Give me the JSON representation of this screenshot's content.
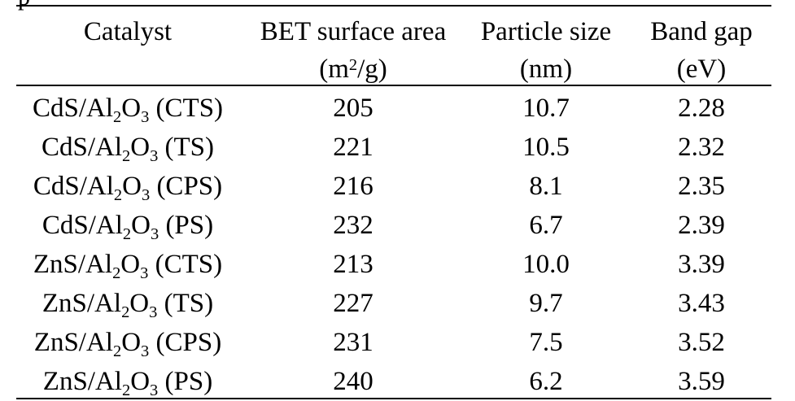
{
  "header": {
    "catalyst": "Catalyst",
    "bet_line1": "BET surface area",
    "bet_unit_pre": "(m",
    "bet_unit_sup": "2",
    "bet_unit_post": "/g)",
    "particle_line1": "Particle size",
    "particle_unit": "(nm)",
    "bandgap_line1": "Band gap",
    "bandgap_unit": "(eV)"
  },
  "rows": [
    {
      "metal": "CdS/Al",
      "o": "O",
      "method": " (CTS)",
      "bet": "205",
      "particle": "10.7",
      "bandgap": "2.28"
    },
    {
      "metal": "CdS/Al",
      "o": "O",
      "method": " (TS)",
      "bet": "221",
      "particle": "10.5",
      "bandgap": "2.32"
    },
    {
      "metal": "CdS/Al",
      "o": "O",
      "method": " (CPS)",
      "bet": "216",
      "particle": "8.1",
      "bandgap": "2.35"
    },
    {
      "metal": "CdS/Al",
      "o": "O",
      "method": " (PS)",
      "bet": "232",
      "particle": "6.7",
      "bandgap": "2.39"
    },
    {
      "metal": "ZnS/Al",
      "o": "O",
      "method": " (CTS)",
      "bet": "213",
      "particle": "10.0",
      "bandgap": "3.39"
    },
    {
      "metal": "ZnS/Al",
      "o": "O",
      "method": " (TS)",
      "bet": "227",
      "particle": "9.7",
      "bandgap": "3.43"
    },
    {
      "metal": "ZnS/Al",
      "o": "O",
      "method": " (CPS)",
      "bet": "231",
      "particle": "7.5",
      "bandgap": "3.52"
    },
    {
      "metal": "ZnS/Al",
      "o": "O",
      "method": " (PS)",
      "bet": "240",
      "particle": "6.2",
      "bandgap": "3.59"
    }
  ],
  "subscripts": {
    "al": "2",
    "o": "3"
  }
}
